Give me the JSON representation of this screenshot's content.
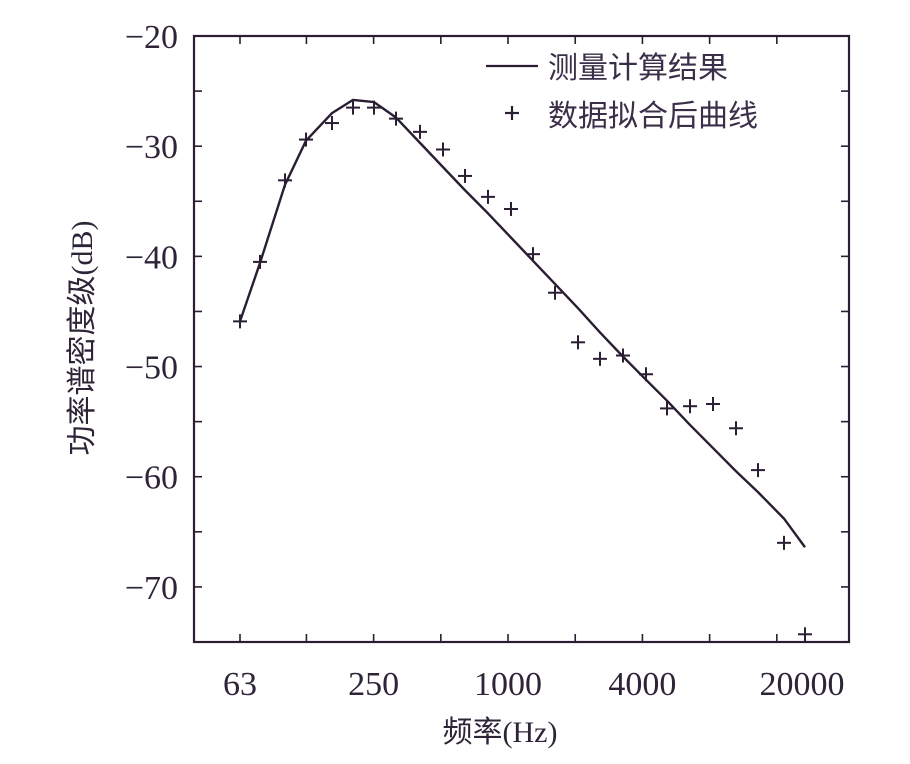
{
  "chart_data": {
    "type": "line",
    "title": "",
    "xlabel": "频率(Hz)",
    "ylabel": "功率谱密度级(dB)",
    "xscale": "log",
    "x_tick_labels": [
      "63",
      "250",
      "1000",
      "4000",
      "20000"
    ],
    "x_tick_values": [
      63,
      125,
      250,
      500,
      1000,
      2000,
      4000,
      8000,
      16000
    ],
    "x_labeled_values": [
      63,
      250,
      1000,
      4000,
      20000
    ],
    "y_tick_labels": [
      "-20",
      "-30",
      "-40",
      "-50",
      "-60",
      "-70"
    ],
    "y_tick_values": [
      -20,
      -25,
      -30,
      -35,
      -40,
      -45,
      -50,
      -55,
      -60,
      -65,
      -70
    ],
    "ylim": [
      -75,
      -20
    ],
    "grid": false,
    "legend_position": "upper right",
    "x": [
      63,
      80,
      100,
      125,
      160,
      200,
      250,
      315,
      400,
      500,
      630,
      800,
      1000,
      1250,
      1600,
      2000,
      2500,
      3150,
      4000,
      5000,
      6300,
      8000,
      10000,
      12500,
      16000,
      20000
    ],
    "series": [
      {
        "name": "测量计算结果",
        "style": "solid-line",
        "values": [
          -45.9,
          -40.6,
          -33.5,
          -29.5,
          -27.0,
          -25.8,
          -26.0,
          -27.4,
          -29.7,
          -31.9,
          -34.0,
          -36.1,
          -38.3,
          -40.4,
          -42.5,
          -44.7,
          -46.9,
          -49.1,
          -51.2,
          -53.1,
          -55.3,
          -57.4,
          -59.5,
          -61.4,
          -63.8,
          -66.4
        ]
      },
      {
        "name": "数据拟合后曲线",
        "style": "plus-markers",
        "values": [
          -45.9,
          -40.5,
          -33.1,
          -29.4,
          -27.9,
          -26.5,
          -26.5,
          -27.5,
          -28.7,
          -30.3,
          -32.7,
          -34.6,
          -35.7,
          -39.8,
          -43.3,
          -47.8,
          -49.3,
          -49.0,
          -50.7,
          -53.8,
          -53.6,
          -53.4,
          -55.6,
          -59.4,
          -66.0,
          -74.3
        ]
      }
    ]
  },
  "legend": {
    "items": [
      {
        "label": "测量计算结果",
        "symbol": "line"
      },
      {
        "label": "数据拟合后曲线",
        "symbol": "plus"
      }
    ]
  },
  "colors": {
    "axis": "#2a1e33",
    "line": "#2a1e33",
    "marker": "#2a1e33",
    "text": "#2d2438",
    "background": "#ffffff"
  }
}
